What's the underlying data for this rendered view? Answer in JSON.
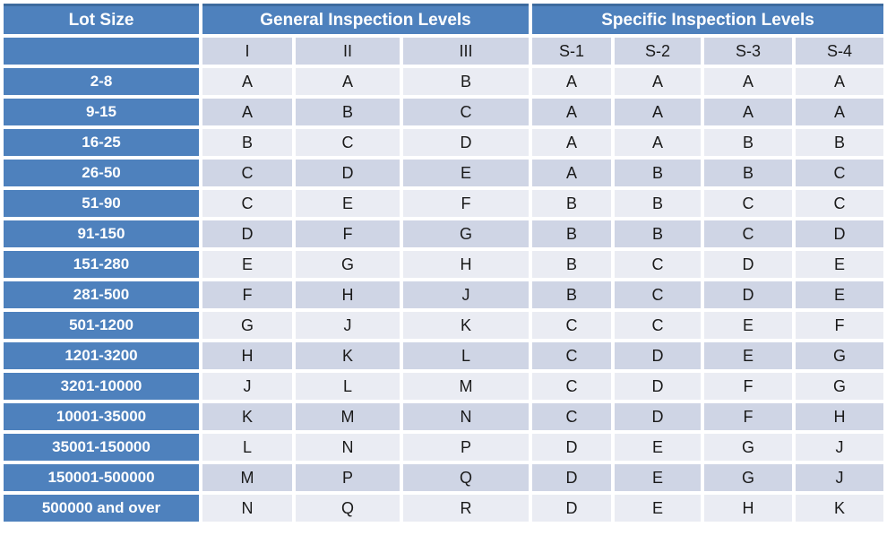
{
  "colors": {
    "header_blue": "#4E81BD",
    "header_top_border": "#3D6B9E",
    "band_dark": "#CFD5E5",
    "band_light": "#EAECF3",
    "cell_text": "#1A1A1A",
    "header_text": "#FFFFFF"
  },
  "chart_data": {
    "type": "table",
    "column_groups": [
      {
        "label": "Lot Size",
        "span": 1
      },
      {
        "label": "General Inspection Levels",
        "span": 3
      },
      {
        "label": "Specific Inspection Levels",
        "span": 4
      }
    ],
    "level_columns": [
      "I",
      "II",
      "III",
      "S-1",
      "S-2",
      "S-3",
      "S-4"
    ],
    "rows": [
      {
        "lot_size": "2-8",
        "levels": [
          "A",
          "A",
          "B",
          "A",
          "A",
          "A",
          "A"
        ]
      },
      {
        "lot_size": "9-15",
        "levels": [
          "A",
          "B",
          "C",
          "A",
          "A",
          "A",
          "A"
        ]
      },
      {
        "lot_size": "16-25",
        "levels": [
          "B",
          "C",
          "D",
          "A",
          "A",
          "B",
          "B"
        ]
      },
      {
        "lot_size": "26-50",
        "levels": [
          "C",
          "D",
          "E",
          "A",
          "B",
          "B",
          "C"
        ]
      },
      {
        "lot_size": "51-90",
        "levels": [
          "C",
          "E",
          "F",
          "B",
          "B",
          "C",
          "C"
        ]
      },
      {
        "lot_size": "91-150",
        "levels": [
          "D",
          "F",
          "G",
          "B",
          "B",
          "C",
          "D"
        ]
      },
      {
        "lot_size": "151-280",
        "levels": [
          "E",
          "G",
          "H",
          "B",
          "C",
          "D",
          "E"
        ]
      },
      {
        "lot_size": "281-500",
        "levels": [
          "F",
          "H",
          "J",
          "B",
          "C",
          "D",
          "E"
        ]
      },
      {
        "lot_size": "501-1200",
        "levels": [
          "G",
          "J",
          "K",
          "C",
          "C",
          "E",
          "F"
        ]
      },
      {
        "lot_size": "1201-3200",
        "levels": [
          "H",
          "K",
          "L",
          "C",
          "D",
          "E",
          "G"
        ]
      },
      {
        "lot_size": "3201-10000",
        "levels": [
          "J",
          "L",
          "M",
          "C",
          "D",
          "F",
          "G"
        ]
      },
      {
        "lot_size": "10001-35000",
        "levels": [
          "K",
          "M",
          "N",
          "C",
          "D",
          "F",
          "H"
        ]
      },
      {
        "lot_size": "35001-150000",
        "levels": [
          "L",
          "N",
          "P",
          "D",
          "E",
          "G",
          "J"
        ]
      },
      {
        "lot_size": "150001-500000",
        "levels": [
          "M",
          "P",
          "Q",
          "D",
          "E",
          "G",
          "J"
        ]
      },
      {
        "lot_size": "500000 and over",
        "levels": [
          "N",
          "Q",
          "R",
          "D",
          "E",
          "H",
          "K"
        ]
      }
    ]
  }
}
